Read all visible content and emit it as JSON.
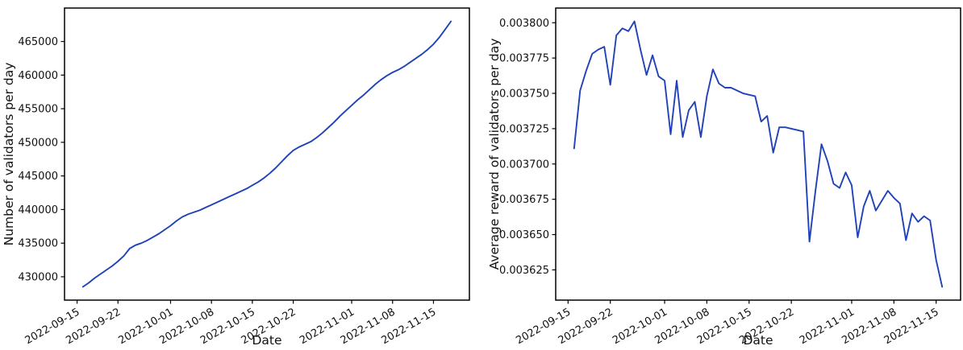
{
  "figure": {
    "background": "#ffffff",
    "spine_color": "#000000",
    "text_color": "#111111"
  },
  "chart_data": [
    {
      "type": "line",
      "title": "",
      "xlabel": "Date",
      "ylabel": "Number of validators per day",
      "line_color": "#2042b8",
      "grid": false,
      "legend": null,
      "x": [
        "2022-09-16",
        "2022-09-17",
        "2022-09-18",
        "2022-09-19",
        "2022-09-20",
        "2022-09-21",
        "2022-09-22",
        "2022-09-23",
        "2022-09-24",
        "2022-09-25",
        "2022-09-26",
        "2022-09-27",
        "2022-09-28",
        "2022-09-29",
        "2022-09-30",
        "2022-10-01",
        "2022-10-02",
        "2022-10-03",
        "2022-10-04",
        "2022-10-05",
        "2022-10-06",
        "2022-10-07",
        "2022-10-08",
        "2022-10-09",
        "2022-10-10",
        "2022-10-11",
        "2022-10-12",
        "2022-10-13",
        "2022-10-14",
        "2022-10-15",
        "2022-10-16",
        "2022-10-17",
        "2022-10-18",
        "2022-10-19",
        "2022-10-20",
        "2022-10-21",
        "2022-10-22",
        "2022-10-23",
        "2022-10-24",
        "2022-10-25",
        "2022-10-26",
        "2022-10-27",
        "2022-10-28",
        "2022-10-29",
        "2022-10-30",
        "2022-10-31",
        "2022-11-01",
        "2022-11-02",
        "2022-11-03",
        "2022-11-04",
        "2022-11-05",
        "2022-11-06",
        "2022-11-07",
        "2022-11-08",
        "2022-11-09",
        "2022-11-10",
        "2022-11-11",
        "2022-11-12",
        "2022-11-13",
        "2022-11-14",
        "2022-11-15",
        "2022-11-16",
        "2022-11-17",
        "2022-11-18"
      ],
      "y": [
        428500,
        429100,
        429800,
        430400,
        431000,
        431600,
        432300,
        433100,
        434200,
        434700,
        435000,
        435400,
        435900,
        436400,
        437000,
        437600,
        438300,
        438900,
        439300,
        439600,
        439900,
        440300,
        440700,
        441100,
        441500,
        441900,
        442300,
        442700,
        443100,
        443600,
        444100,
        444700,
        445400,
        446200,
        447100,
        448000,
        448800,
        449300,
        449700,
        450100,
        450700,
        451400,
        452200,
        453000,
        453900,
        454700,
        455500,
        456300,
        457000,
        457800,
        458600,
        459300,
        459900,
        460400,
        460800,
        461300,
        461900,
        462500,
        463100,
        463800,
        464600,
        465600,
        466800,
        468000
      ],
      "xticks": [
        "2022-09-15",
        "2022-09-22",
        "2022-10-01",
        "2022-10-08",
        "2022-10-15",
        "2022-10-22",
        "2022-11-01",
        "2022-11-08",
        "2022-11-15"
      ],
      "yticks": [
        430000,
        435000,
        440000,
        445000,
        450000,
        455000,
        460000,
        465000
      ],
      "ytick_labels": [
        "430000",
        "435000",
        "440000",
        "445000",
        "450000",
        "455000",
        "460000",
        "465000"
      ]
    },
    {
      "type": "line",
      "title": "",
      "xlabel": "Date",
      "ylabel": "Average reward of validators per day",
      "line_color": "#2042b8",
      "grid": false,
      "legend": null,
      "x": [
        "2022-09-16",
        "2022-09-17",
        "2022-09-18",
        "2022-09-19",
        "2022-09-20",
        "2022-09-21",
        "2022-09-22",
        "2022-09-23",
        "2022-09-24",
        "2022-09-25",
        "2022-09-26",
        "2022-09-27",
        "2022-09-28",
        "2022-09-29",
        "2022-09-30",
        "2022-10-01",
        "2022-10-02",
        "2022-10-03",
        "2022-10-04",
        "2022-10-05",
        "2022-10-06",
        "2022-10-07",
        "2022-10-08",
        "2022-10-09",
        "2022-10-10",
        "2022-10-11",
        "2022-10-12",
        "2022-10-13",
        "2022-10-14",
        "2022-10-15",
        "2022-10-16",
        "2022-10-17",
        "2022-10-18",
        "2022-10-19",
        "2022-10-20",
        "2022-10-21",
        "2022-10-22",
        "2022-10-23",
        "2022-10-24",
        "2022-10-25",
        "2022-10-26",
        "2022-10-27",
        "2022-10-28",
        "2022-10-29",
        "2022-10-30",
        "2022-10-31",
        "2022-11-01",
        "2022-11-02",
        "2022-11-03",
        "2022-11-04",
        "2022-11-05",
        "2022-11-06",
        "2022-11-07",
        "2022-11-08",
        "2022-11-09",
        "2022-11-10",
        "2022-11-11",
        "2022-11-12",
        "2022-11-13",
        "2022-11-14",
        "2022-11-15",
        "2022-11-16"
      ],
      "y": [
        0.003711,
        0.003752,
        0.003766,
        0.003778,
        0.003781,
        0.003783,
        0.003756,
        0.003791,
        0.003796,
        0.003794,
        0.003801,
        0.003781,
        0.003763,
        0.003777,
        0.003762,
        0.003759,
        0.003721,
        0.003759,
        0.003719,
        0.003738,
        0.003744,
        0.003719,
        0.003748,
        0.003767,
        0.003757,
        0.003754,
        0.003754,
        0.003752,
        0.00375,
        0.003749,
        0.003748,
        0.00373,
        0.003734,
        0.003708,
        0.003726,
        0.003726,
        0.003725,
        0.003724,
        0.003723,
        0.003645,
        0.003681,
        0.003714,
        0.003702,
        0.003686,
        0.003683,
        0.003694,
        0.003685,
        0.003648,
        0.00367,
        0.003681,
        0.003667,
        0.003674,
        0.003681,
        0.003676,
        0.003672,
        0.003646,
        0.003665,
        0.003659,
        0.003663,
        0.00366,
        0.003632,
        0.003613
      ],
      "xticks": [
        "2022-09-15",
        "2022-09-22",
        "2022-10-01",
        "2022-10-08",
        "2022-10-15",
        "2022-10-22",
        "2022-11-01",
        "2022-11-08",
        "2022-11-15"
      ],
      "yticks": [
        0.003625,
        0.00365,
        0.003675,
        0.0037,
        0.003725,
        0.00375,
        0.003775,
        0.0038
      ],
      "ytick_labels": [
        "0.003625",
        "0.003650",
        "0.003675",
        "0.003700",
        "0.003725",
        "0.003750",
        "0.003775",
        "0.003800"
      ]
    }
  ]
}
